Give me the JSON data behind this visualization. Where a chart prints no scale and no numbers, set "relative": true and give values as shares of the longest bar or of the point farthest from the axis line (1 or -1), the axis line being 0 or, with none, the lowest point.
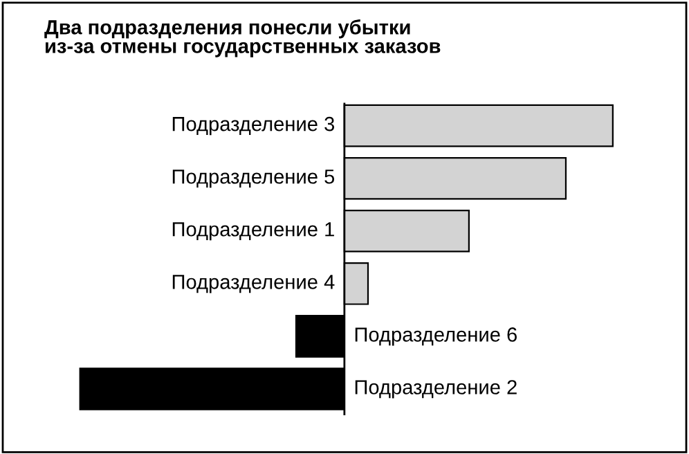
{
  "chart_data": {
    "type": "bar",
    "orientation": "horizontal",
    "relative": true,
    "title": "Два подразделения понесли убытки\nиз-за отмены государственных заказов",
    "categories": [
      "Подразделение 3",
      "Подразделение 5",
      "Подразделение 1",
      "Подразделение 4",
      "Подразделение 6",
      "Подразделение 2"
    ],
    "values": [
      1,
      0.825,
      0.464,
      0.088,
      -0.18,
      -0.985
    ],
    "colors": [
      "#d3d3d3",
      "#d3d3d3",
      "#d3d3d3",
      "#d3d3d3",
      "#000000",
      "#000000"
    ],
    "legend": false
  }
}
